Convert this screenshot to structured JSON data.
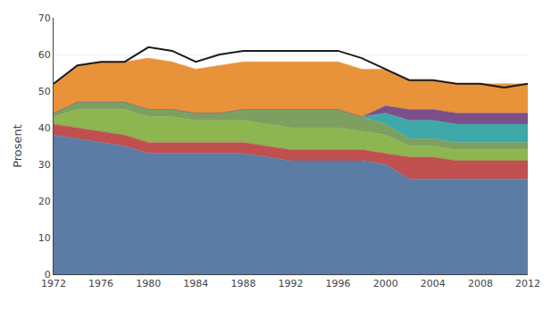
{
  "chart_data": {
    "type": "area",
    "stacked": true,
    "ylabel": "Prosent",
    "x": [
      1972,
      1974,
      1976,
      1978,
      1980,
      1982,
      1984,
      1986,
      1988,
      1990,
      1992,
      1994,
      1996,
      1998,
      2000,
      2002,
      2004,
      2006,
      2008,
      2010,
      2012
    ],
    "series": [
      {
        "color": "#5a7ca5",
        "values": [
          38,
          37,
          36,
          35,
          33,
          33,
          33,
          33,
          33,
          32,
          31,
          31,
          31,
          31,
          30,
          26,
          26,
          26,
          26,
          26,
          26
        ]
      },
      {
        "color": "#c05050",
        "values": [
          3,
          3,
          3,
          3,
          3,
          3,
          3,
          3,
          3,
          3,
          3,
          3,
          3,
          3,
          3,
          6,
          6,
          5,
          5,
          5,
          5
        ]
      },
      {
        "color": "#8db550",
        "values": [
          2,
          5,
          6,
          7,
          7,
          7,
          6,
          6,
          6,
          6,
          6,
          6,
          6,
          5,
          5,
          3,
          3,
          3,
          3,
          3,
          3
        ]
      },
      {
        "color": "#7da060",
        "values": [
          1,
          2,
          2,
          2,
          2,
          2,
          2,
          2,
          3,
          4,
          5,
          5,
          5,
          4,
          3,
          2,
          2,
          2,
          2,
          2,
          2
        ]
      },
      {
        "color": "#3fa8a8",
        "values": [
          0,
          0,
          0,
          0,
          0,
          0,
          0,
          0,
          0,
          0,
          0,
          0,
          0,
          0,
          3,
          5,
          5,
          5,
          5,
          5,
          5
        ]
      },
      {
        "color": "#7b4f88",
        "values": [
          0,
          0,
          0,
          0,
          0,
          0,
          0,
          0,
          0,
          0,
          0,
          0,
          0,
          0,
          2,
          3,
          3,
          3,
          3,
          3,
          3
        ]
      },
      {
        "color": "#e8923a",
        "values": [
          8,
          10,
          11,
          11,
          14,
          13,
          12,
          13,
          13,
          13,
          13,
          13,
          13,
          13,
          10,
          8,
          8,
          8,
          8,
          8,
          8
        ]
      },
      {
        "type": "line",
        "color": "#1a1a1a",
        "values": [
          52,
          57,
          58,
          58,
          62,
          61,
          58,
          60,
          61,
          61,
          61,
          61,
          61,
          59,
          56,
          53,
          53,
          52,
          52,
          51,
          52
        ]
      }
    ],
    "xlim": [
      1972,
      2012
    ],
    "ylim": [
      0,
      70
    ],
    "xticks": [
      1972,
      1976,
      1980,
      1984,
      1988,
      1992,
      1996,
      2000,
      2004,
      2008,
      2012
    ],
    "yticks": [
      0,
      10,
      20,
      30,
      40,
      50,
      60,
      70
    ],
    "grid": "y"
  }
}
